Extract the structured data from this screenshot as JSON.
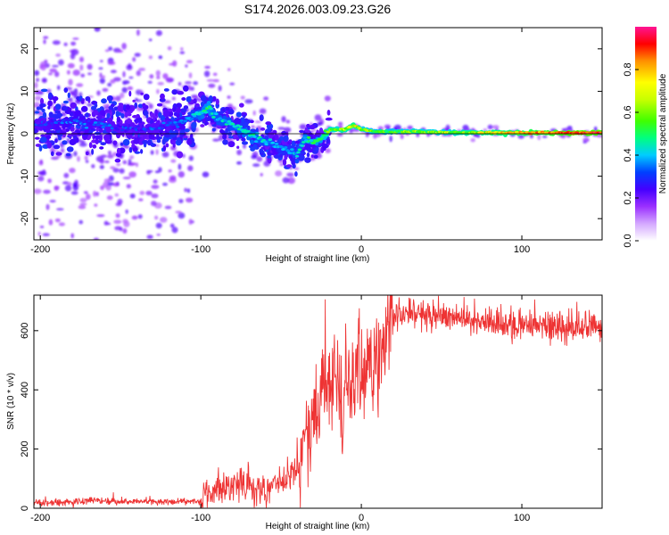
{
  "title": "S174.2026.003.09.23.G26",
  "chart_data": [
    {
      "type": "heatmap",
      "title": "S174.2026.003.09.23.G26",
      "xlabel": "Height of straight line (km)",
      "ylabel": "Frequency (Hz)",
      "xlim": [
        -204,
        150
      ],
      "ylim": [
        -25,
        25
      ],
      "xticks": [
        -200,
        -100,
        0,
        100
      ],
      "yticks": [
        -20,
        -10,
        0,
        10,
        20
      ],
      "colorbar": {
        "label": "Normalized spectral amplitude",
        "ticks": [
          0.0,
          0.2,
          0.4,
          0.6,
          0.8
        ],
        "range": [
          0,
          1
        ],
        "colormap": [
          "#d4a8ff",
          "#9b30ff",
          "#4400ff",
          "#0060ff",
          "#00ccff",
          "#00ff80",
          "#40ff00",
          "#ffff00",
          "#ff9000",
          "#ff0000",
          "#ff1493"
        ]
      },
      "ridge": {
        "description": "spectral peak frequency track",
        "height_km": [
          -200,
          -180,
          -160,
          -140,
          -120,
          -110,
          -100,
          -95,
          -90,
          -80,
          -70,
          -60,
          -50,
          -45,
          -40,
          -35,
          -30,
          -25,
          -20,
          -10,
          -5,
          0,
          10,
          20,
          30,
          50,
          100,
          150
        ],
        "frequency_hz": [
          2,
          3,
          2,
          1,
          2,
          3,
          5,
          6,
          4,
          2,
          0,
          -2,
          -3,
          -4,
          -5,
          -1,
          -2,
          -1,
          1,
          1,
          2,
          1,
          0.5,
          0.5,
          0.5,
          0.3,
          0.2,
          0.2
        ],
        "amplitude": [
          0.25,
          0.3,
          0.25,
          0.25,
          0.25,
          0.3,
          0.45,
          0.5,
          0.4,
          0.4,
          0.45,
          0.4,
          0.35,
          0.35,
          0.4,
          0.45,
          0.5,
          0.5,
          0.6,
          0.65,
          0.7,
          0.6,
          0.55,
          0.55,
          0.6,
          0.6,
          0.75,
          0.9
        ]
      }
    },
    {
      "type": "line",
      "xlabel": "Height of straight line (km)",
      "ylabel": "SNR (10 * v/v)",
      "xlim": [
        -204,
        150
      ],
      "ylim": [
        0,
        720
      ],
      "xticks": [
        -200,
        -100,
        0,
        100
      ],
      "yticks": [
        0,
        200,
        400,
        600
      ],
      "line_color": "#ee3333",
      "series": [
        {
          "name": "SNR",
          "x": [
            -204,
            -180,
            -170,
            -160,
            -140,
            -120,
            -100,
            -95,
            -90,
            -80,
            -70,
            -60,
            -50,
            -40,
            -35,
            -30,
            -25,
            -20,
            -15,
            -12,
            -10,
            -5,
            0,
            5,
            10,
            15,
            20,
            30,
            40,
            60,
            80,
            100,
            120,
            150
          ],
          "y": [
            18,
            20,
            30,
            25,
            22,
            22,
            25,
            55,
            70,
            80,
            65,
            60,
            90,
            130,
            220,
            300,
            380,
            420,
            460,
            250,
            440,
            430,
            440,
            470,
            520,
            600,
            650,
            660,
            650,
            640,
            625,
            620,
            610,
            615
          ]
        }
      ]
    }
  ]
}
